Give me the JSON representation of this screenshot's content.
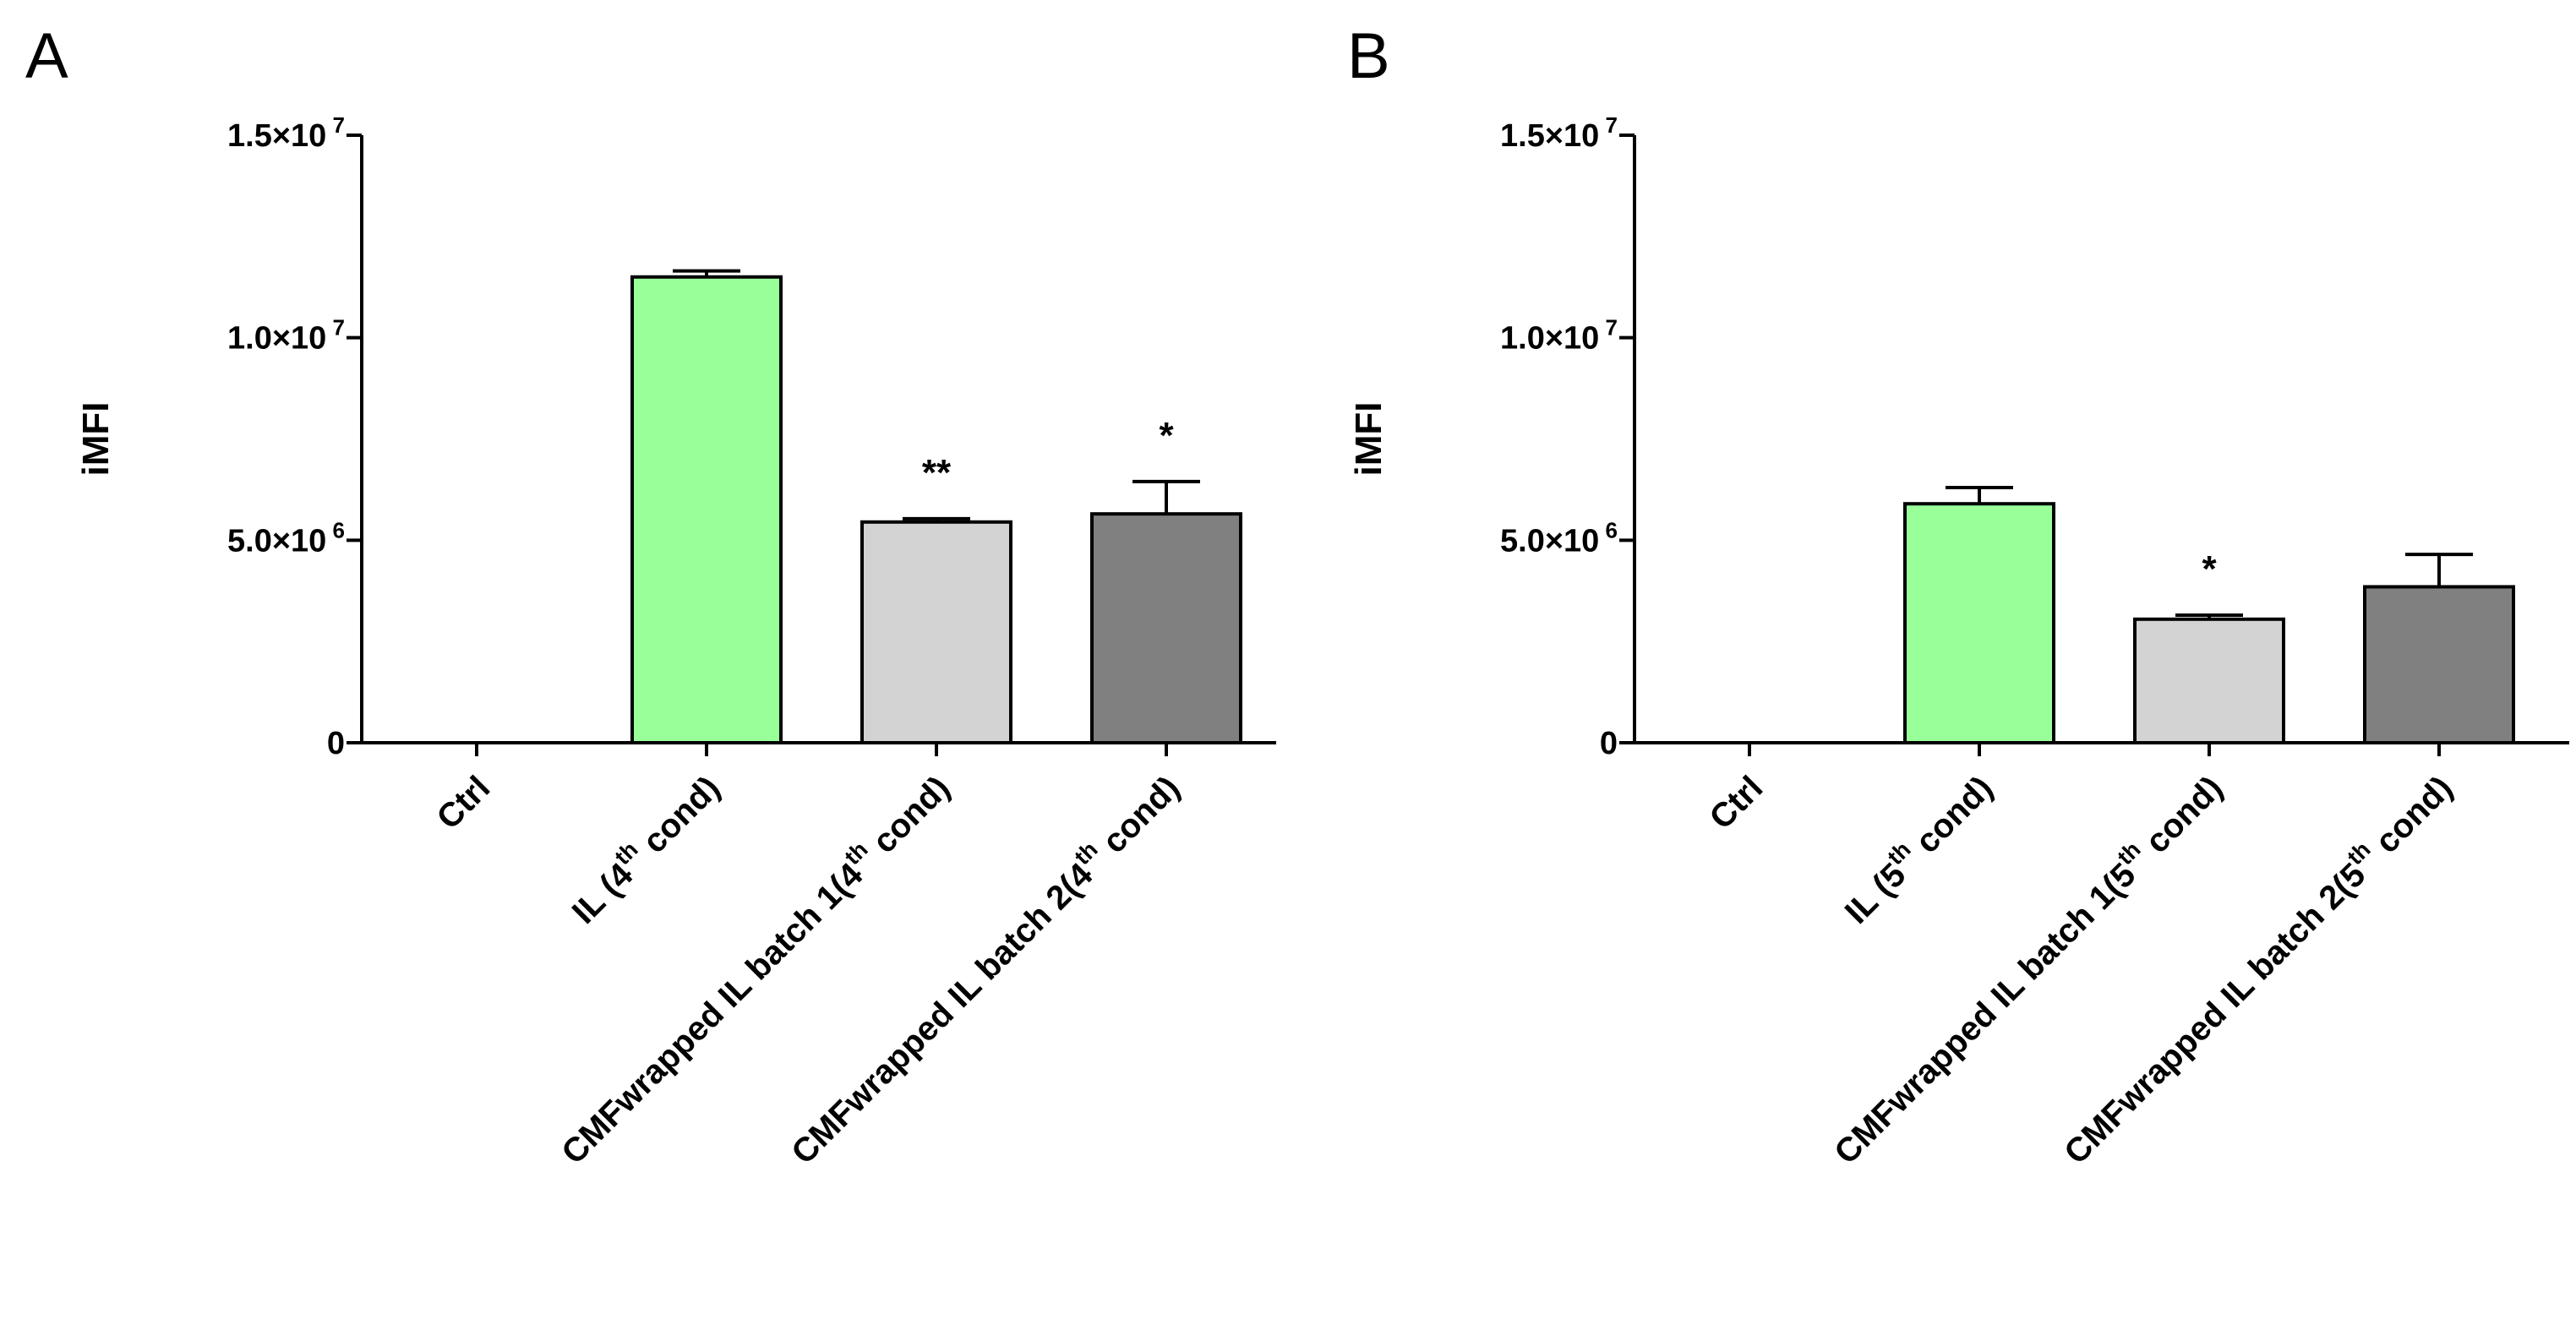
{
  "chart_data": [
    {
      "type": "bar",
      "panel_label": "A",
      "ylabel": "iMFI",
      "ylim": [
        0,
        15000000
      ],
      "yticks": [
        {
          "value": 0,
          "base": "0",
          "exp": ""
        },
        {
          "value": 5000000,
          "base": "5.0×10",
          "exp": "6"
        },
        {
          "value": 10000000,
          "base": "1.0×10",
          "exp": "7"
        },
        {
          "value": 15000000,
          "base": "1.5×10",
          "exp": "7"
        }
      ],
      "categories": [
        {
          "pre": "Ctrl",
          "sup": "",
          "post": ""
        },
        {
          "pre": "IL (4",
          "sup": "th",
          "post": " cond)"
        },
        {
          "pre": "CMFwrapped IL batch 1(4",
          "sup": "th",
          "post": " cond)"
        },
        {
          "pre": "CMFwrapped IL batch 2(4",
          "sup": "th",
          "post": " cond)"
        }
      ],
      "values": [
        0,
        11500000,
        5450000,
        5650000
      ],
      "errors": [
        0,
        150000,
        80000,
        800000
      ],
      "colors": [
        "#ffffff",
        "#99ff99",
        "#d3d3d3",
        "#808080"
      ],
      "significance": [
        "",
        "",
        "**",
        "*"
      ]
    },
    {
      "type": "bar",
      "panel_label": "B",
      "ylabel": "iMFI",
      "ylim": [
        0,
        15000000
      ],
      "yticks": [
        {
          "value": 0,
          "base": "0",
          "exp": ""
        },
        {
          "value": 5000000,
          "base": "5.0×10",
          "exp": "6"
        },
        {
          "value": 10000000,
          "base": "1.0×10",
          "exp": "7"
        },
        {
          "value": 15000000,
          "base": "1.5×10",
          "exp": "7"
        }
      ],
      "categories": [
        {
          "pre": "Ctrl",
          "sup": "",
          "post": ""
        },
        {
          "pre": "IL (5",
          "sup": "th",
          "post": "  cond)"
        },
        {
          "pre": "CMFwrapped IL batch 1(5",
          "sup": "th",
          "post": " cond)"
        },
        {
          "pre": "CMFwrapped IL batch 2(5",
          "sup": "th",
          "post": " cond)"
        }
      ],
      "values": [
        0,
        5900000,
        3050000,
        3850000
      ],
      "errors": [
        0,
        400000,
        100000,
        800000
      ],
      "colors": [
        "#ffffff",
        "#99ff99",
        "#d3d3d3",
        "#808080"
      ],
      "significance": [
        "",
        "",
        "*",
        ""
      ]
    }
  ]
}
